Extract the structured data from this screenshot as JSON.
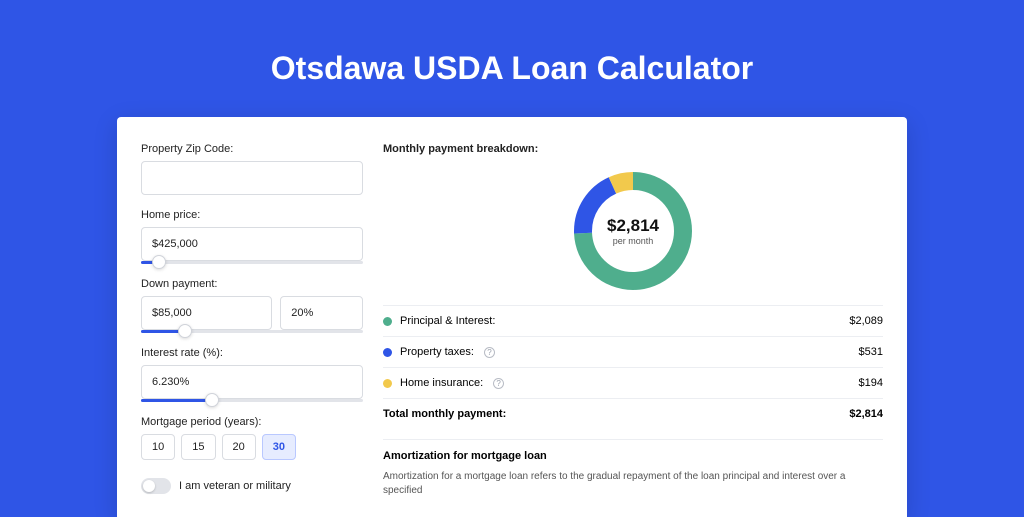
{
  "page": {
    "title": "Otsdawa USDA Loan Calculator",
    "background_color": "#2f55e6",
    "card_background": "#ffffff"
  },
  "form": {
    "zip": {
      "label": "Property Zip Code:",
      "value": ""
    },
    "home_price": {
      "label": "Home price:",
      "value": "$425,000",
      "slider_pct": 8
    },
    "down_payment": {
      "label": "Down payment:",
      "value": "$85,000",
      "pct_value": "20%",
      "slider_pct": 20
    },
    "interest": {
      "label": "Interest rate (%):",
      "value": "6.230%",
      "slider_pct": 32
    },
    "period": {
      "label": "Mortgage period (years):",
      "options": [
        "10",
        "15",
        "20",
        "30"
      ],
      "selected": "30"
    },
    "veteran": {
      "label": "I am veteran or military",
      "checked": false
    }
  },
  "breakdown": {
    "title": "Monthly payment breakdown:",
    "center_amount": "$2,814",
    "center_sub": "per month",
    "donut": {
      "type": "donut",
      "radius": 50,
      "stroke_width": 18,
      "background_color": "#ffffff",
      "segments": [
        {
          "label": "Principal & Interest:",
          "value": "$2,089",
          "color": "#4fae8d",
          "fraction": 0.742
        },
        {
          "label": "Property taxes:",
          "value": "$531",
          "color": "#2f55e6",
          "fraction": 0.189,
          "has_info": true
        },
        {
          "label": "Home insurance:",
          "value": "$194",
          "color": "#f2c94c",
          "fraction": 0.069,
          "has_info": true
        }
      ]
    },
    "total": {
      "label": "Total monthly payment:",
      "value": "$2,814"
    }
  },
  "amortization": {
    "title": "Amortization for mortgage loan",
    "text": "Amortization for a mortgage loan refers to the gradual repayment of the loan principal and interest over a specified"
  }
}
